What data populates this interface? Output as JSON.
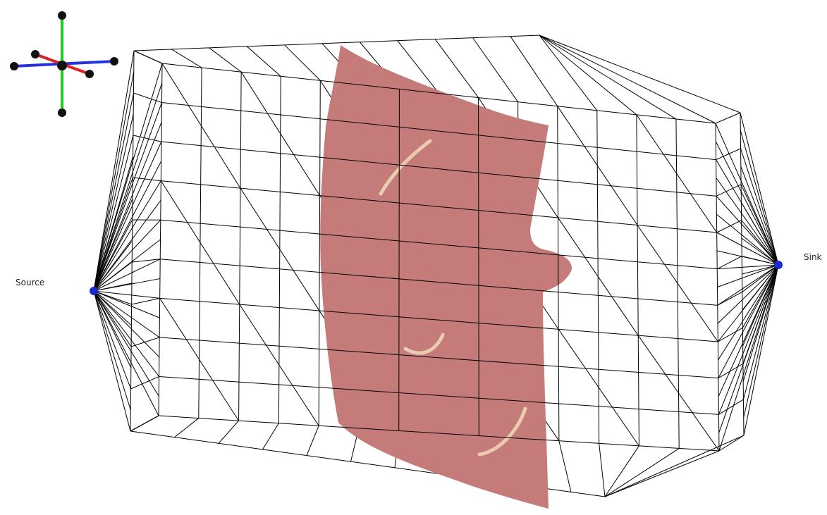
{
  "labels": {
    "source": "Source",
    "sink": "Sink"
  }
}
